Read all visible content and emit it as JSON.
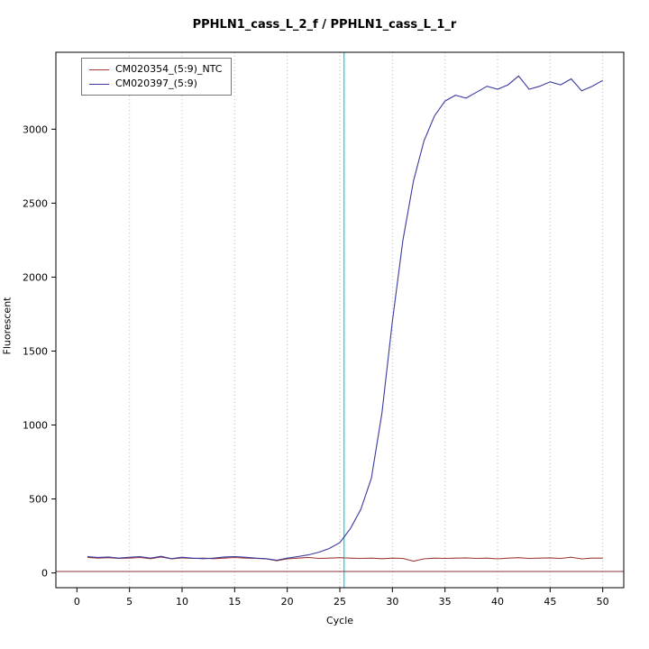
{
  "title": "PPHLN1_cass_L_2_f / PPHLN1_cass_L_1_r",
  "chart_data": {
    "type": "line",
    "title": "PPHLN1_cass_L_2_f / PPHLN1_cass_L_1_r",
    "xlabel": "Cycle",
    "ylabel": "Fluorescent",
    "xlim": [
      -2,
      52
    ],
    "ylim": [
      -100,
      3520
    ],
    "x_ticks": [
      0,
      5,
      10,
      15,
      20,
      25,
      30,
      35,
      40,
      45,
      50
    ],
    "y_ticks": [
      0,
      500,
      1000,
      1500,
      2000,
      2500,
      3000
    ],
    "grid": {
      "vertical_at": [
        5,
        10,
        15,
        20,
        25,
        30,
        35,
        40,
        45,
        50
      ],
      "style": "dotted",
      "color": "#b8b8b8"
    },
    "ct_line": {
      "x": 25.4,
      "color": "#00e0e6"
    },
    "threshold_line": {
      "y": 10,
      "color": "#8b3333"
    },
    "legend_position": "top-left",
    "x": [
      1,
      2,
      3,
      4,
      5,
      6,
      7,
      8,
      9,
      10,
      11,
      12,
      13,
      14,
      15,
      16,
      17,
      18,
      19,
      20,
      21,
      22,
      23,
      24,
      25,
      26,
      27,
      28,
      29,
      30,
      31,
      32,
      33,
      34,
      35,
      36,
      37,
      38,
      39,
      40,
      41,
      42,
      43,
      44,
      45,
      46,
      47,
      48,
      49,
      50
    ],
    "series": [
      {
        "name": "CM020354_(5:9)_NTC",
        "color": "#a03a3a",
        "values": [
          105,
          100,
          103,
          98,
          100,
          104,
          96,
          108,
          95,
          102,
          98,
          100,
          96,
          100,
          104,
          100,
          98,
          95,
          82,
          95,
          100,
          105,
          98,
          100,
          103,
          100,
          98,
          100,
          96,
          100,
          98,
          80,
          95,
          100,
          98,
          100,
          102,
          98,
          100,
          95,
          100,
          103,
          98,
          100,
          102,
          98,
          106,
          95,
          100,
          100
        ]
      },
      {
        "name": "CM020397_(5:9)",
        "color": "#3b3b9e",
        "values": [
          110,
          105,
          108,
          100,
          106,
          110,
          100,
          112,
          96,
          106,
          100,
          96,
          100,
          108,
          110,
          106,
          100,
          96,
          86,
          100,
          110,
          122,
          140,
          165,
          205,
          300,
          430,
          640,
          1080,
          1700,
          2250,
          2650,
          2920,
          3090,
          3190,
          3230,
          3210,
          3250,
          3290,
          3270,
          3300,
          3360,
          3270,
          3290,
          3320,
          3300,
          3340,
          3260,
          3290,
          3330
        ]
      }
    ]
  }
}
